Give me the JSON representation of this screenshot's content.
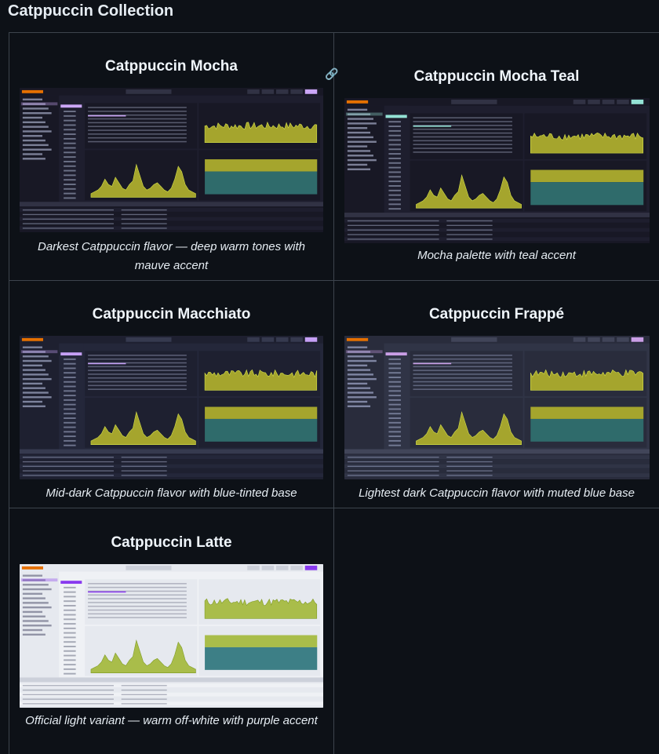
{
  "page": {
    "title": "Catppuccin Collection"
  },
  "anchor_icon": "link-icon",
  "themes": [
    {
      "id": "mocha",
      "title": "Catppuccin Mocha",
      "caption": "Darkest Catppuccin flavor — deep warm tones with mauve accent",
      "colors": {
        "bg": "#1e1e2e",
        "panel": "#181825",
        "surface": "#313244",
        "text": "#cdd6f4",
        "accent": "#cba6f7",
        "chart_fill": "#a5a52d",
        "chart_stroke": "#d7e34a",
        "mem_used": "#2f6b6b"
      }
    },
    {
      "id": "mocha-teal",
      "title": "Catppuccin Mocha Teal",
      "caption": "Mocha palette with teal accent",
      "colors": {
        "bg": "#1e1e2e",
        "panel": "#181825",
        "surface": "#313244",
        "text": "#cdd6f4",
        "accent": "#94e2d5",
        "chart_fill": "#a5a52d",
        "chart_stroke": "#d7e34a",
        "mem_used": "#2f6b6b"
      }
    },
    {
      "id": "macchiato",
      "title": "Catppuccin Macchiato",
      "caption": "Mid-dark Catppuccin flavor with blue-tinted base",
      "colors": {
        "bg": "#24273a",
        "panel": "#1e2030",
        "surface": "#363a4f",
        "text": "#cad3f5",
        "accent": "#c6a0f6",
        "chart_fill": "#a5a52d",
        "chart_stroke": "#d7e34a",
        "mem_used": "#2f6b6b"
      }
    },
    {
      "id": "frappe",
      "title": "Catppuccin Frappé",
      "caption": "Lightest dark Catppuccin flavor with muted blue base",
      "colors": {
        "bg": "#303446",
        "panel": "#292c3c",
        "surface": "#414559",
        "text": "#c6d0f5",
        "accent": "#ca9ee6",
        "chart_fill": "#a5a52d",
        "chart_stroke": "#d7e34a",
        "mem_used": "#2f6b6b"
      }
    },
    {
      "id": "latte",
      "title": "Catppuccin Latte",
      "caption": "Official light variant — warm off-white with purple accent",
      "colors": {
        "bg": "#eff1f5",
        "panel": "#e6e9ef",
        "surface": "#ccd0da",
        "text": "#4c4f69",
        "accent": "#8839ef",
        "chart_fill": "#a9bd4a",
        "chart_stroke": "#7d9a22",
        "mem_used": "#3d7f86"
      }
    }
  ]
}
